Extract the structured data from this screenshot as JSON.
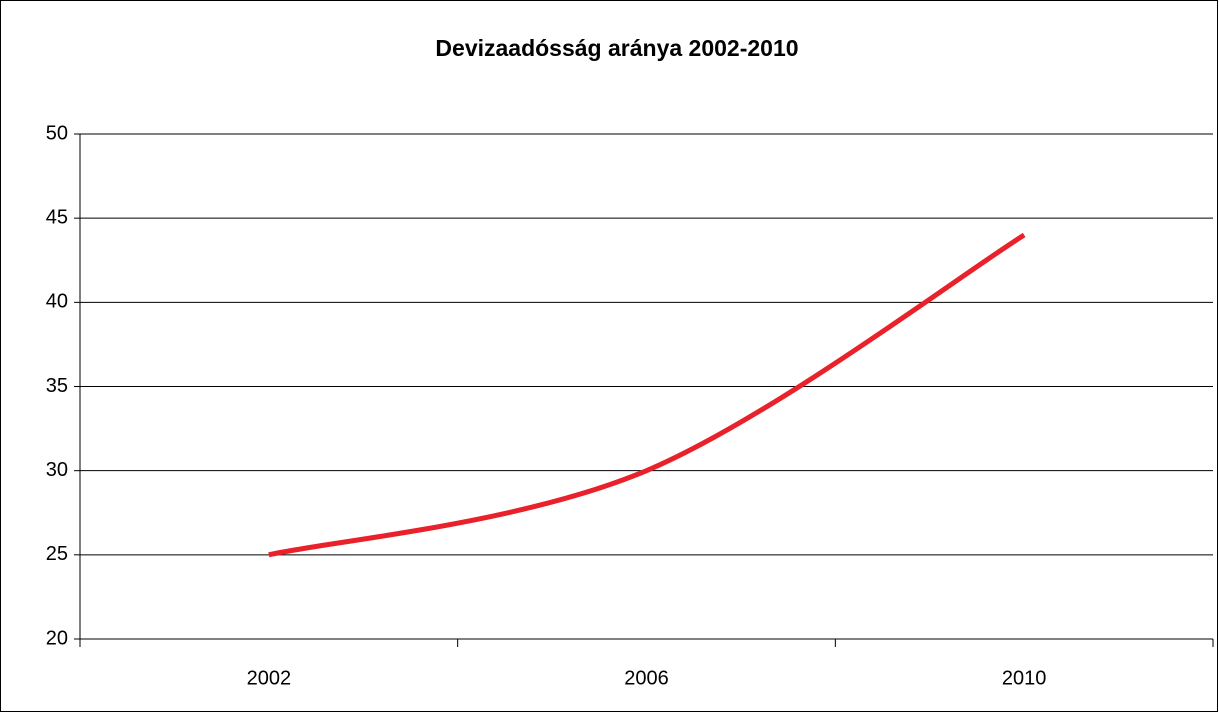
{
  "chart_data": {
    "type": "line",
    "title": "Devizaadósság aránya 2002-2010",
    "categories": [
      "2002",
      "2006",
      "2010"
    ],
    "values": [
      25,
      30,
      44
    ],
    "color": "#e8212a",
    "smooth": true,
    "ylim": [
      20,
      50
    ],
    "yticks": [
      20,
      25,
      30,
      35,
      40,
      45,
      50
    ],
    "grid": true
  }
}
